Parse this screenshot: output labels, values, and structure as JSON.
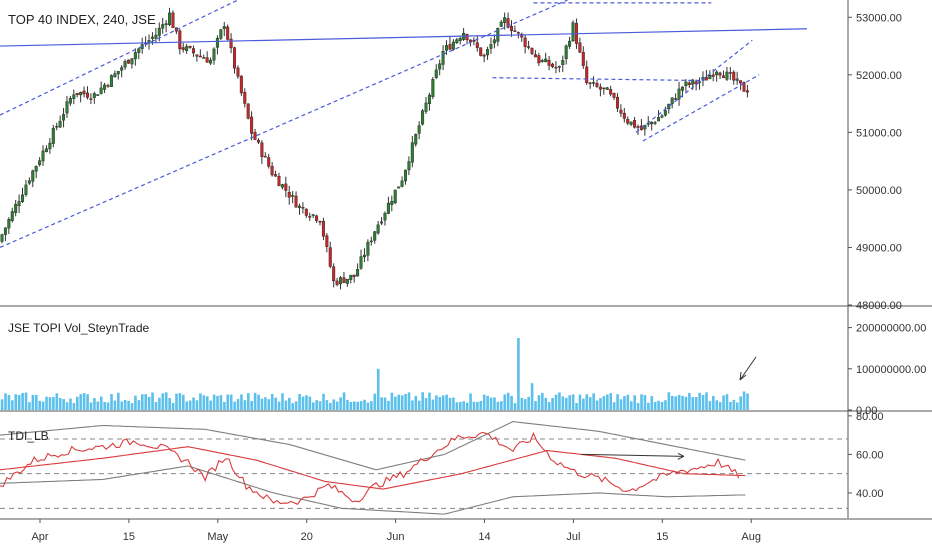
{
  "chart_data": [
    {
      "type": "candlestick",
      "title": "TOP 40 INDEX, 240, JSE",
      "ylim": [
        48000,
        53300
      ],
      "y_ticks": [
        "53000.00",
        "52000.00",
        "51000.00",
        "50000.00",
        "49000.00",
        "48000.00"
      ],
      "approx_closes": [
        {
          "t": 0,
          "v": 49100
        },
        {
          "t": 8,
          "v": 50100
        },
        {
          "t": 16,
          "v": 51000
        },
        {
          "t": 22,
          "v": 51700
        },
        {
          "t": 28,
          "v": 51650
        },
        {
          "t": 34,
          "v": 52000
        },
        {
          "t": 40,
          "v": 52400
        },
        {
          "t": 46,
          "v": 52700
        },
        {
          "t": 50,
          "v": 53050
        },
        {
          "t": 53,
          "v": 52500
        },
        {
          "t": 58,
          "v": 52350
        },
        {
          "t": 62,
          "v": 52250
        },
        {
          "t": 66,
          "v": 52900
        },
        {
          "t": 70,
          "v": 51900
        },
        {
          "t": 74,
          "v": 51000
        },
        {
          "t": 80,
          "v": 50300
        },
        {
          "t": 88,
          "v": 49700
        },
        {
          "t": 94,
          "v": 49500
        },
        {
          "t": 98,
          "v": 48400
        },
        {
          "t": 104,
          "v": 48500
        },
        {
          "t": 110,
          "v": 49300
        },
        {
          "t": 118,
          "v": 50200
        },
        {
          "t": 124,
          "v": 51300
        },
        {
          "t": 130,
          "v": 52400
        },
        {
          "t": 136,
          "v": 52750
        },
        {
          "t": 142,
          "v": 52300
        },
        {
          "t": 148,
          "v": 52950
        },
        {
          "t": 152,
          "v": 52700
        },
        {
          "t": 158,
          "v": 52250
        },
        {
          "t": 164,
          "v": 52100
        },
        {
          "t": 168,
          "v": 52850
        },
        {
          "t": 172,
          "v": 51850
        },
        {
          "t": 178,
          "v": 51700
        },
        {
          "t": 184,
          "v": 51200
        },
        {
          "t": 188,
          "v": 51050
        },
        {
          "t": 194,
          "v": 51300
        },
        {
          "t": 200,
          "v": 51800
        },
        {
          "t": 206,
          "v": 51900
        },
        {
          "t": 210,
          "v": 52100
        },
        {
          "t": 214,
          "v": 51950
        },
        {
          "t": 218,
          "v": 51750
        }
      ],
      "trendlines": [
        {
          "style": "solid",
          "color": "#4a5bdc",
          "from": [
            0,
            52500
          ],
          "to": [
            236,
            52800
          ]
        },
        {
          "style": "dashed",
          "color": "#4a5bdc",
          "from": [
            0,
            51300
          ],
          "to": [
            80,
            53600
          ]
        },
        {
          "style": "dashed",
          "color": "#4a5bdc",
          "from": [
            0,
            49000
          ],
          "to": [
            166,
            53300
          ]
        },
        {
          "style": "dashed",
          "color": "#4a5bdc",
          "from": [
            156,
            53250
          ],
          "to": [
            208,
            53250
          ]
        },
        {
          "style": "dashed",
          "color": "#4a5bdc",
          "from": [
            144,
            51950
          ],
          "to": [
            206,
            51900
          ]
        },
        {
          "style": "dashed",
          "color": "#4a5bdc",
          "from": [
            186,
            51000
          ],
          "to": [
            220,
            52600
          ]
        },
        {
          "style": "dashed",
          "color": "#4a5bdc",
          "from": [
            188,
            50850
          ],
          "to": [
            222,
            52000
          ]
        }
      ],
      "colors": {
        "up": "#2e7d32",
        "down": "#c62828",
        "line": "#4a5bdc"
      }
    },
    {
      "type": "bar",
      "title": "JSE TOPI Vol_SteynTrade",
      "ylim": [
        0,
        250000000
      ],
      "y_ticks": [
        "200000000.00",
        "100000000.00",
        "0.00"
      ],
      "baseline": 30000000,
      "spikes": [
        {
          "t": 110,
          "value": 100000000
        },
        {
          "t": 151,
          "value": 175000000
        },
        {
          "t": 155,
          "value": 65000000
        },
        {
          "t": 217,
          "value": 45000000
        }
      ],
      "color": "#5bc0eb"
    },
    {
      "type": "line",
      "title": "TDI_LB",
      "ylim": [
        27,
        82
      ],
      "y_ticks": [
        "80.00",
        "60.00",
        "40.00"
      ],
      "levels": [
        68,
        50,
        32
      ],
      "series": [
        {
          "color": "#7f7f7f",
          "values": [
            {
              "t": 0,
              "v": 70
            },
            {
              "t": 30,
              "v": 75
            },
            {
              "t": 60,
              "v": 73
            },
            {
              "t": 85,
              "v": 65
            },
            {
              "t": 110,
              "v": 52
            },
            {
              "t": 130,
              "v": 60
            },
            {
              "t": 150,
              "v": 77
            },
            {
              "t": 175,
              "v": 72
            },
            {
              "t": 195,
              "v": 65
            },
            {
              "t": 218,
              "v": 57
            }
          ]
        },
        {
          "color": "#7f7f7f",
          "values": [
            {
              "t": 0,
              "v": 45
            },
            {
              "t": 30,
              "v": 47
            },
            {
              "t": 55,
              "v": 54
            },
            {
              "t": 80,
              "v": 40
            },
            {
              "t": 100,
              "v": 32
            },
            {
              "t": 130,
              "v": 29
            },
            {
              "t": 150,
              "v": 38
            },
            {
              "t": 175,
              "v": 40
            },
            {
              "t": 195,
              "v": 38
            },
            {
              "t": 218,
              "v": 39
            }
          ]
        },
        {
          "color": "#d93b3b",
          "values": [
            {
              "t": 0,
              "v": 52
            },
            {
              "t": 30,
              "v": 58
            },
            {
              "t": 55,
              "v": 64
            },
            {
              "t": 75,
              "v": 57
            },
            {
              "t": 95,
              "v": 46
            },
            {
              "t": 112,
              "v": 42
            },
            {
              "t": 135,
              "v": 50
            },
            {
              "t": 160,
              "v": 62
            },
            {
              "t": 180,
              "v": 58
            },
            {
              "t": 200,
              "v": 50
            },
            {
              "t": 218,
              "v": 49
            }
          ]
        },
        {
          "color": "#d93b3b",
          "values": [
            {
              "t": 0,
              "v": 44
            },
            {
              "t": 10,
              "v": 57
            },
            {
              "t": 20,
              "v": 62
            },
            {
              "t": 30,
              "v": 64
            },
            {
              "t": 40,
              "v": 67
            },
            {
              "t": 48,
              "v": 63
            },
            {
              "t": 55,
              "v": 56
            },
            {
              "t": 60,
              "v": 48
            },
            {
              "t": 66,
              "v": 59
            },
            {
              "t": 72,
              "v": 44
            },
            {
              "t": 80,
              "v": 35
            },
            {
              "t": 88,
              "v": 36
            },
            {
              "t": 96,
              "v": 44
            },
            {
              "t": 104,
              "v": 36
            },
            {
              "t": 110,
              "v": 44
            },
            {
              "t": 118,
              "v": 50
            },
            {
              "t": 126,
              "v": 60
            },
            {
              "t": 134,
              "v": 69
            },
            {
              "t": 142,
              "v": 71
            },
            {
              "t": 150,
              "v": 62
            },
            {
              "t": 156,
              "v": 69
            },
            {
              "t": 162,
              "v": 57
            },
            {
              "t": 168,
              "v": 51
            },
            {
              "t": 176,
              "v": 47
            },
            {
              "t": 184,
              "v": 41
            },
            {
              "t": 190,
              "v": 46
            },
            {
              "t": 198,
              "v": 51
            },
            {
              "t": 204,
              "v": 53
            },
            {
              "t": 210,
              "v": 56
            },
            {
              "t": 216,
              "v": 49
            }
          ]
        }
      ],
      "annotation_arrow": {
        "from": [
          170,
          60
        ],
        "to": [
          200,
          59
        ]
      }
    }
  ],
  "x_axis": {
    "labels": [
      {
        "t": 0,
        "label": "Apr"
      },
      {
        "t": 26,
        "label": "15"
      },
      {
        "t": 52,
        "label": "May"
      },
      {
        "t": 78,
        "label": "20"
      },
      {
        "t": 104,
        "label": "Jun"
      },
      {
        "t": 130,
        "label": "14"
      },
      {
        "t": 156,
        "label": "Jul"
      },
      {
        "t": 182,
        "label": "15"
      },
      {
        "t": 208,
        "label": "Aug"
      }
    ]
  }
}
